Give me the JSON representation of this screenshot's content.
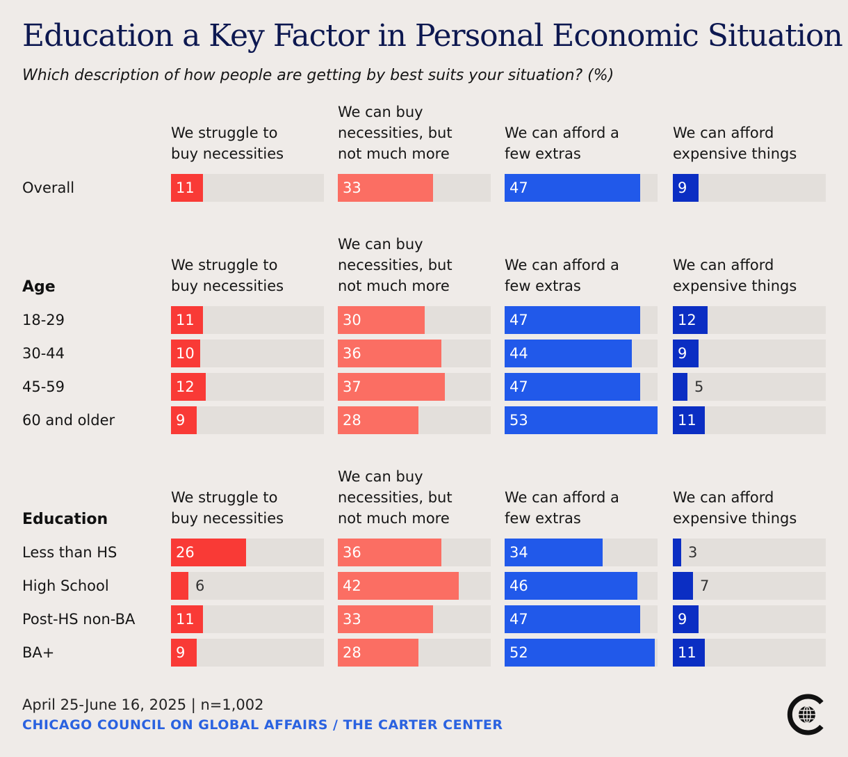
{
  "header": {
    "title": "Education a Key Factor in Personal Economic Situation",
    "subtitle": "Which description of how people are getting by best suits your situation? (%)"
  },
  "columns": [
    "We struggle to\nbuy necessities",
    "We can buy\nnecessities, but\nnot much more",
    "We can afford a\nfew extras",
    "We can afford\nexpensive things"
  ],
  "colors": {
    "struggle": "#f93a36",
    "buy_necessities": "#fb6e63",
    "few_extras": "#2159ea",
    "expensive": "#0b2ec3",
    "track": "#e3dfdb",
    "background": "#efebe8",
    "source": "#2a62e0"
  },
  "chart_data": {
    "type": "bar",
    "orientation": "horizontal",
    "unit": "%",
    "xlim": [
      0,
      53
    ],
    "series": [
      {
        "name": "We struggle to buy necessities"
      },
      {
        "name": "We can buy necessities, but not much more"
      },
      {
        "name": "We can afford a few extras"
      },
      {
        "name": "We can afford expensive things"
      }
    ],
    "groups": [
      {
        "label": "",
        "rows": [
          {
            "label": "Overall",
            "values": [
              11,
              33,
              47,
              9
            ]
          }
        ]
      },
      {
        "label": "Age",
        "rows": [
          {
            "label": "18-29",
            "values": [
              11,
              30,
              47,
              12
            ]
          },
          {
            "label": "30-44",
            "values": [
              10,
              36,
              44,
              9
            ]
          },
          {
            "label": "45-59",
            "values": [
              12,
              37,
              47,
              5
            ]
          },
          {
            "label": "60 and older",
            "values": [
              9,
              28,
              53,
              11
            ]
          }
        ]
      },
      {
        "label": "Education",
        "rows": [
          {
            "label": "Less than HS",
            "values": [
              26,
              36,
              34,
              3
            ]
          },
          {
            "label": "High School",
            "values": [
              6,
              42,
              46,
              7
            ]
          },
          {
            "label": "Post-HS non-BA",
            "values": [
              11,
              33,
              47,
              9
            ]
          },
          {
            "label": "BA+",
            "values": [
              9,
              28,
              52,
              11
            ]
          }
        ]
      }
    ]
  },
  "footer": {
    "dates": "April 25-June 16, 2025 | n=1,002",
    "source": "CHICAGO COUNCIL ON GLOBAL AFFAIRS / THE CARTER CENTER"
  },
  "logo": {
    "icon": "globe-c-logo-icon"
  }
}
